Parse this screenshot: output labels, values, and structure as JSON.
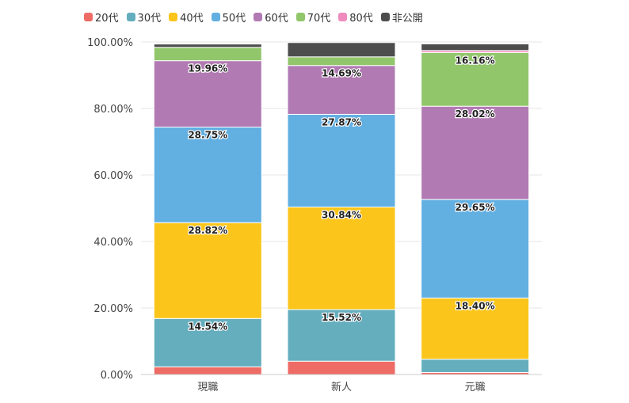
{
  "chart_data": {
    "type": "bar",
    "stacked": true,
    "categories": [
      "現職",
      "新人",
      "元職"
    ],
    "ylim": [
      0,
      100
    ],
    "yticks": [
      0,
      20,
      40,
      60,
      80,
      100
    ],
    "ytick_labels": [
      "0.00%",
      "20.00%",
      "40.00%",
      "60.00%",
      "80.00%",
      "100.00%"
    ],
    "grid": true,
    "legend_position": "top-left",
    "series": [
      {
        "name": "20代",
        "color": "#ee6b66",
        "values": [
          2.3,
          4.0,
          0.6
        ],
        "labels": [
          null,
          null,
          null
        ]
      },
      {
        "name": "30代",
        "color": "#64aebe",
        "values": [
          14.54,
          15.52,
          4.0
        ],
        "labels": [
          "14.54%",
          "15.52%",
          null
        ]
      },
      {
        "name": "40代",
        "color": "#fbc51b",
        "values": [
          28.82,
          30.84,
          18.4
        ],
        "labels": [
          "28.82%",
          "30.84%",
          "18.40%"
        ]
      },
      {
        "name": "50代",
        "color": "#62afe2",
        "values": [
          28.75,
          27.87,
          29.65
        ],
        "labels": [
          "28.75%",
          "27.87%",
          "29.65%"
        ]
      },
      {
        "name": "60代",
        "color": "#b27ab3",
        "values": [
          19.96,
          14.69,
          28.02
        ],
        "labels": [
          "19.96%",
          "14.69%",
          "28.02%"
        ]
      },
      {
        "name": "70代",
        "color": "#92c66b",
        "values": [
          4.0,
          2.6,
          16.16
        ],
        "labels": [
          null,
          null,
          "16.16%"
        ]
      },
      {
        "name": "80代",
        "color": "#ef8bbd",
        "values": [
          0.0,
          0.0,
          0.6
        ],
        "labels": [
          null,
          null,
          null
        ]
      },
      {
        "name": "非公開",
        "color": "#4d4d4d",
        "values": [
          1.0,
          4.3,
          2.0
        ],
        "labels": [
          null,
          null,
          null
        ]
      }
    ]
  }
}
